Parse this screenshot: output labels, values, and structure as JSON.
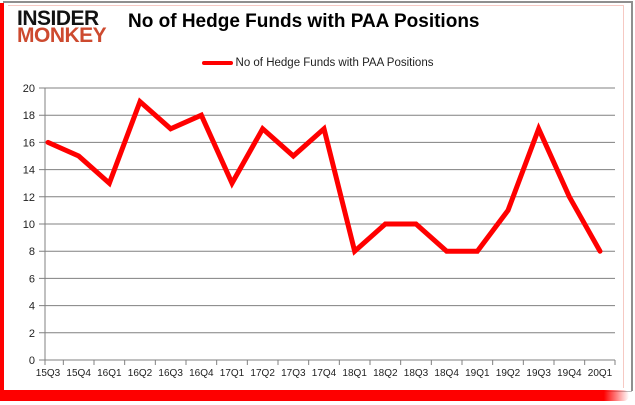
{
  "logo": {
    "line1": "INSIDER",
    "line2": "MONKEY"
  },
  "title": "No of Hedge Funds with PAA Positions",
  "legend": {
    "label": "No of Hedge Funds with PAA Positions",
    "color": "#ff0000"
  },
  "colors": {
    "logo_black": "#121212",
    "logo_red": "#cd4a2f",
    "frame_accent_red": "#fe0000",
    "frame_border_gray": "#8f8f8f",
    "frame_inner_pink": "#f6c9c3",
    "gridline": "#808080",
    "axis_label": "#1f1f1f",
    "series_red": "#ff0000",
    "background": "#ffffff"
  },
  "chart_data": {
    "type": "line",
    "title": "No of Hedge Funds with PAA Positions",
    "categories": [
      "15Q3",
      "15Q4",
      "16Q1",
      "16Q2",
      "16Q3",
      "16Q4",
      "17Q1",
      "17Q2",
      "17Q3",
      "17Q4",
      "18Q1",
      "18Q2",
      "18Q3",
      "18Q4",
      "19Q1",
      "19Q2",
      "19Q3",
      "19Q4",
      "20Q1"
    ],
    "series": [
      {
        "name": "No of Hedge Funds with PAA Positions",
        "color": "#ff0000",
        "values": [
          16,
          15,
          13,
          19,
          17,
          18,
          13,
          17,
          15,
          17,
          8,
          10,
          10,
          8,
          8,
          11,
          17,
          12,
          8
        ]
      }
    ],
    "xlabel": "",
    "ylabel": "",
    "ylim": [
      0,
      20
    ],
    "ytick_step": 2,
    "grid": true,
    "legend_position": "top-center"
  }
}
